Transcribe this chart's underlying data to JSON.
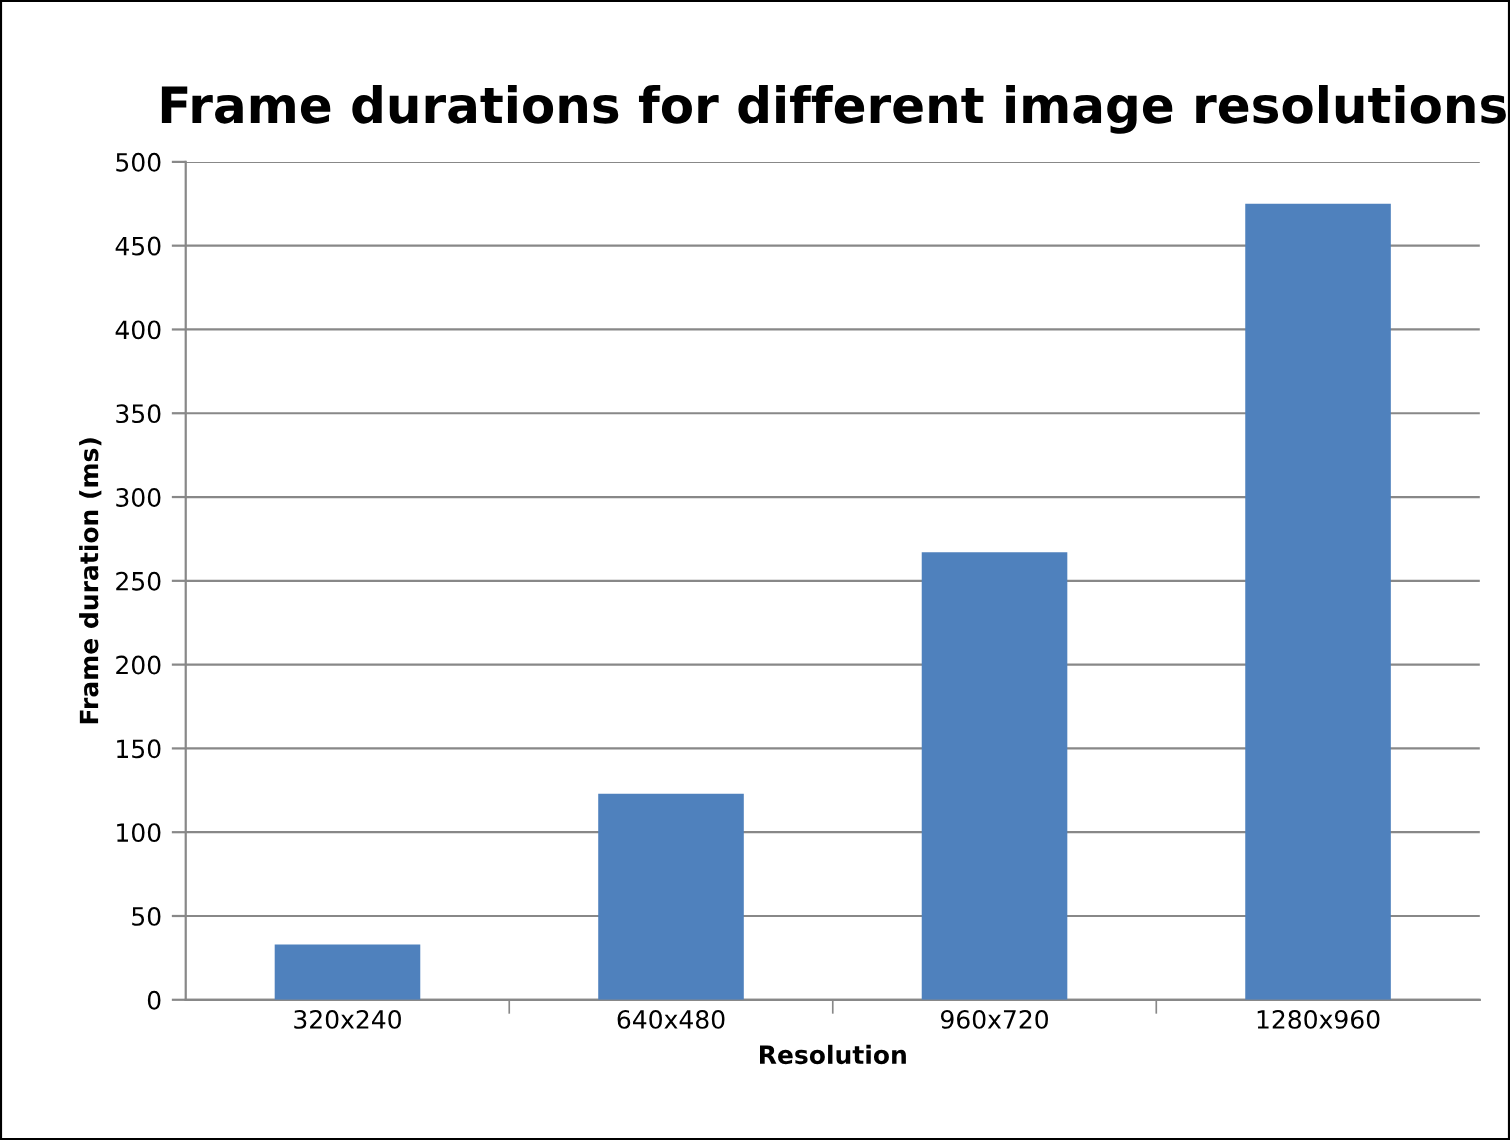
{
  "chart_data": {
    "type": "bar",
    "title": "Frame durations for different image resolutions",
    "xlabel": "Resolution",
    "ylabel": "Frame duration (ms)",
    "categories": [
      "320x240",
      "640x480",
      "960x720",
      "1280x960"
    ],
    "values": [
      33,
      123,
      267,
      475
    ],
    "color": "#4f81bd",
    "ylim": [
      0,
      500
    ],
    "yticks": [
      0,
      50,
      100,
      150,
      200,
      250,
      300,
      350,
      400,
      450,
      500
    ],
    "grid": "y",
    "legend": false
  }
}
